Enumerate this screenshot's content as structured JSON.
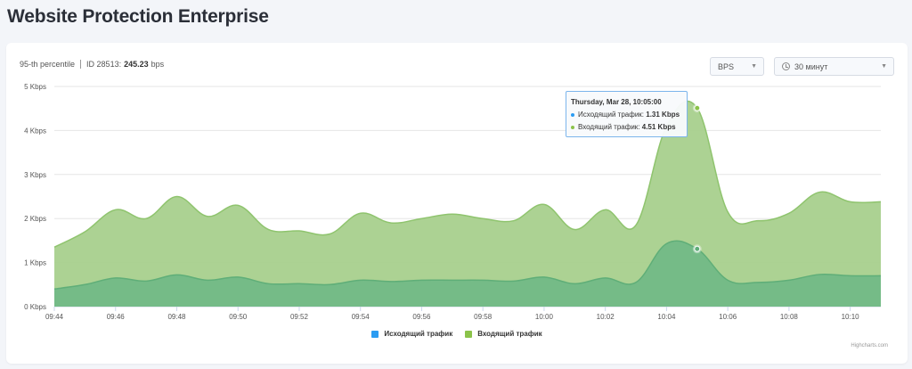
{
  "page": {
    "title": "Website Protection Enterprise"
  },
  "stats": {
    "percentile_label": "95-th percentile",
    "id_label": "ID 28513:",
    "id_value": "245.23",
    "id_unit": "bps"
  },
  "controls": {
    "units": {
      "value": "BPS"
    },
    "period": {
      "value": "30 минут"
    }
  },
  "tooltip": {
    "title": "Thursday, Mar 28, 10:05:00",
    "rows": [
      {
        "label": "Исходящий трафик:",
        "value": "1.31 Kbps"
      },
      {
        "label": "Входящий трафик:",
        "value": "4.51 Kbps"
      }
    ]
  },
  "credits": "Highcharts.com",
  "colors": {
    "outgoing": "#2b9cf2",
    "incoming": "#8bc34a",
    "outgoing_fill": "#6fb886",
    "incoming_fill": "#a8d08d"
  },
  "chart_data": {
    "type": "area",
    "stacked": false,
    "x": [
      "09:44",
      "09:45",
      "09:46",
      "09:47",
      "09:48",
      "09:49",
      "09:50",
      "09:51",
      "09:52",
      "09:53",
      "09:54",
      "09:55",
      "09:56",
      "09:57",
      "09:58",
      "09:59",
      "10:00",
      "10:01",
      "10:02",
      "10:03",
      "10:04",
      "10:05",
      "10:06",
      "10:07",
      "10:08",
      "10:09",
      "10:10",
      "10:11"
    ],
    "x_tick_labels": [
      "09:44",
      "09:46",
      "09:48",
      "09:50",
      "09:52",
      "09:54",
      "09:56",
      "09:58",
      "10:00",
      "10:02",
      "10:04",
      "10:06",
      "10:08",
      "10:10"
    ],
    "y_tick_labels": [
      "0 Kbps",
      "1 Kbps",
      "2 Kbps",
      "3 Kbps",
      "4 Kbps",
      "5 Kbps"
    ],
    "ylim": [
      0,
      5
    ],
    "ylabel_unit": "Kbps",
    "grid": true,
    "legend_position": "bottom-center",
    "series": [
      {
        "name": "Исходящий трафик",
        "values": [
          0.4,
          0.5,
          0.65,
          0.58,
          0.72,
          0.6,
          0.67,
          0.52,
          0.52,
          0.5,
          0.6,
          0.57,
          0.6,
          0.6,
          0.6,
          0.58,
          0.67,
          0.52,
          0.65,
          0.55,
          1.43,
          1.31,
          0.6,
          0.55,
          0.6,
          0.73,
          0.7,
          0.7
        ]
      },
      {
        "name": "Входящий трафик",
        "values": [
          1.35,
          1.7,
          2.2,
          2.0,
          2.5,
          2.05,
          2.3,
          1.75,
          1.72,
          1.65,
          2.12,
          1.9,
          2.0,
          2.1,
          2.0,
          1.95,
          2.32,
          1.75,
          2.2,
          1.85,
          4.1,
          4.51,
          2.15,
          1.95,
          2.12,
          2.6,
          2.38,
          2.38
        ]
      }
    ]
  },
  "legend": {
    "outgoing": "Исходящий трафик",
    "incoming": "Входящий трафик"
  }
}
